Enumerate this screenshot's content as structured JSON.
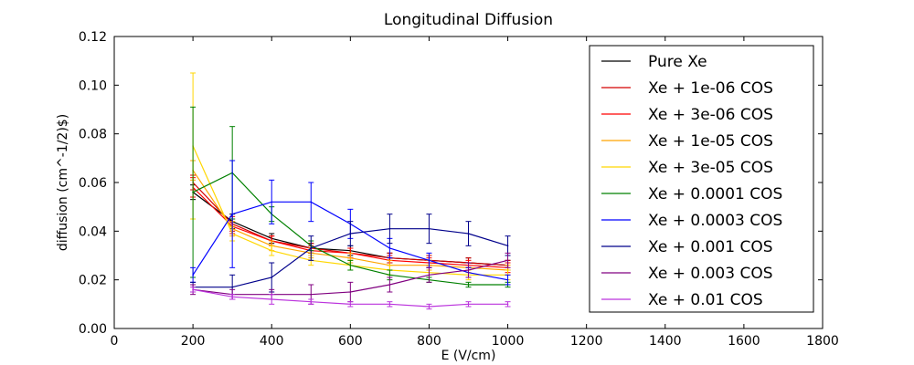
{
  "chart_data": {
    "type": "line",
    "title": "Longitudinal Diffusion",
    "xlabel": "E (V/cm)",
    "ylabel": "diffusion (cm^-1/2)$)",
    "xlim": [
      0,
      1800
    ],
    "ylim": [
      0,
      0.12
    ],
    "xticks": [
      "0",
      "200",
      "400",
      "600",
      "800",
      "1000",
      "1200",
      "1400",
      "1600",
      "1800"
    ],
    "yticks": [
      "0.00",
      "0.02",
      "0.04",
      "0.06",
      "0.08",
      "0.10",
      "0.12"
    ],
    "legend_position": "top-right",
    "grid": false,
    "x": [
      200,
      300,
      400,
      500,
      600,
      700,
      800,
      900,
      1000
    ],
    "series": [
      {
        "name": "Pure Xe",
        "color": "#000000",
        "values": [
          0.056,
          0.044,
          0.037,
          0.033,
          0.032,
          0.029,
          0.028,
          0.027,
          0.026
        ],
        "errors": [
          0.003,
          0.003,
          0.002,
          0.002,
          0.002,
          0.002,
          0.002,
          0.002,
          0.002
        ]
      },
      {
        "name": "Xe + 1e-06 COS",
        "color": "#d40000",
        "values": [
          0.06,
          0.043,
          0.036,
          0.033,
          0.031,
          0.029,
          0.028,
          0.027,
          0.026
        ],
        "errors": [
          0.003,
          0.003,
          0.002,
          0.002,
          0.002,
          0.002,
          0.002,
          0.002,
          0.002
        ]
      },
      {
        "name": "Xe + 3e-06 COS",
        "color": "#ff0000",
        "values": [
          0.058,
          0.042,
          0.036,
          0.032,
          0.031,
          0.028,
          0.027,
          0.026,
          0.025
        ],
        "errors": [
          0.004,
          0.003,
          0.002,
          0.002,
          0.002,
          0.002,
          0.002,
          0.002,
          0.002
        ]
      },
      {
        "name": "Xe + 1e-05 COS",
        "color": "#ffa500",
        "values": [
          0.065,
          0.041,
          0.034,
          0.031,
          0.029,
          0.026,
          0.026,
          0.025,
          0.024
        ],
        "errors": [
          0.004,
          0.003,
          0.002,
          0.002,
          0.002,
          0.002,
          0.002,
          0.002,
          0.002
        ]
      },
      {
        "name": "Xe + 3e-05 COS",
        "color": "#ffd700",
        "values": [
          0.075,
          0.039,
          0.032,
          0.028,
          0.026,
          0.024,
          0.023,
          0.022,
          0.022
        ],
        "errors": [
          0.03,
          0.003,
          0.002,
          0.002,
          0.002,
          0.002,
          0.002,
          0.002,
          0.002
        ]
      },
      {
        "name": "Xe + 0.0001 COS",
        "color": "#008000",
        "values": [
          0.056,
          0.064,
          0.047,
          0.034,
          0.026,
          0.022,
          0.02,
          0.018,
          0.018
        ],
        "errors": [
          0.035,
          0.019,
          0.003,
          0.002,
          0.002,
          0.002,
          0.001,
          0.001,
          0.001
        ]
      },
      {
        "name": "Xe + 0.0003 COS",
        "color": "#0000ff",
        "values": [
          0.022,
          0.047,
          0.052,
          0.052,
          0.043,
          0.033,
          0.028,
          0.023,
          0.02
        ],
        "errors": [
          0.003,
          0.022,
          0.009,
          0.008,
          0.006,
          0.004,
          0.003,
          0.002,
          0.002
        ]
      },
      {
        "name": "Xe + 0.001 COS",
        "color": "#00008b",
        "values": [
          0.017,
          0.017,
          0.021,
          0.033,
          0.039,
          0.041,
          0.041,
          0.039,
          0.034
        ],
        "errors": [
          0.002,
          0.005,
          0.006,
          0.005,
          0.005,
          0.006,
          0.006,
          0.005,
          0.004
        ]
      },
      {
        "name": "Xe + 0.003 COS",
        "color": "#800080",
        "values": [
          0.016,
          0.014,
          0.014,
          0.014,
          0.015,
          0.018,
          0.022,
          0.024,
          0.028
        ],
        "errors": [
          0.002,
          0.002,
          0.002,
          0.004,
          0.004,
          0.003,
          0.003,
          0.003,
          0.003
        ]
      },
      {
        "name": "Xe + 0.01 COS",
        "color": "#bb33dd",
        "values": [
          0.016,
          0.013,
          0.012,
          0.011,
          0.01,
          0.01,
          0.009,
          0.01,
          0.01
        ],
        "errors": [
          0.001,
          0.001,
          0.002,
          0.001,
          0.001,
          0.001,
          0.001,
          0.001,
          0.001
        ]
      }
    ]
  }
}
